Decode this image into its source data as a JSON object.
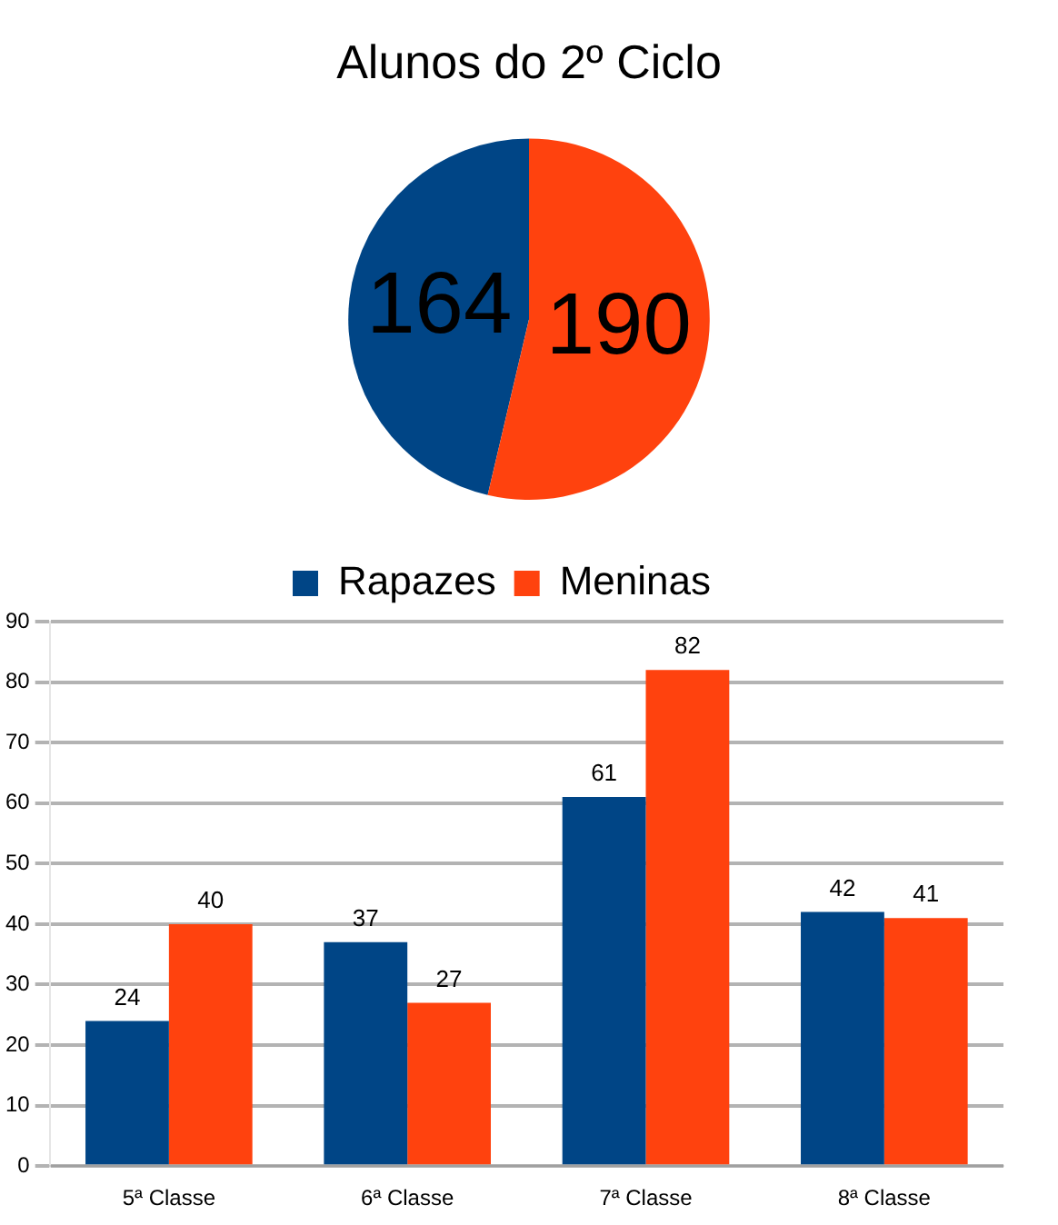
{
  "chart_data": [
    {
      "type": "pie",
      "title": "Alunos do 2º Ciclo",
      "categories": [
        null,
        null
      ],
      "values": [
        164,
        190
      ],
      "colors": [
        "#004586",
        "#ff420e"
      ],
      "data_labels": true
    },
    {
      "type": "bar",
      "categories": [
        "5ª Classe",
        "6ª Classe",
        "7ª Classe",
        "8ª Classe"
      ],
      "series": [
        {
          "name": "Rapazes",
          "color": "#004586",
          "values": [
            24,
            37,
            61,
            42
          ]
        },
        {
          "name": "Meninas",
          "color": "#ff420e",
          "values": [
            40,
            27,
            82,
            41
          ]
        }
      ],
      "ylim": [
        0,
        90
      ],
      "yticks": [
        0,
        10,
        20,
        30,
        40,
        50,
        60,
        70,
        80,
        90
      ],
      "grid": "y",
      "legend": "top",
      "data_labels": true
    }
  ]
}
